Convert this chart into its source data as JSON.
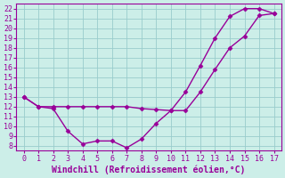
{
  "line1_x": [
    0,
    1,
    2,
    3,
    4,
    5,
    6,
    7,
    8,
    9,
    10,
    11,
    12,
    13,
    14,
    15,
    16,
    17
  ],
  "line1_y": [
    13,
    12,
    11.8,
    9.5,
    8.2,
    8.5,
    8.5,
    7.8,
    8.7,
    10.3,
    11.6,
    13.5,
    16.2,
    19.0,
    21.2,
    22.0,
    22.0,
    21.5
  ],
  "line2_x": [
    0,
    1,
    2,
    3,
    4,
    5,
    6,
    7,
    8,
    9,
    10,
    11,
    12,
    13,
    14,
    15,
    16,
    17
  ],
  "line2_y": [
    13,
    12,
    12,
    12,
    12,
    12,
    12,
    12,
    11.8,
    11.7,
    11.6,
    11.6,
    13.5,
    15.8,
    18.0,
    19.2,
    21.3,
    21.5
  ],
  "line_color": "#990099",
  "bg_color": "#cceee8",
  "grid_color": "#99cccc",
  "xlabel": "Windchill (Refroidissement éolien,°C)",
  "xlim": [
    -0.5,
    17.5
  ],
  "ylim": [
    7.5,
    22.5
  ],
  "xticks": [
    0,
    1,
    2,
    3,
    4,
    5,
    6,
    7,
    8,
    9,
    10,
    11,
    12,
    13,
    14,
    15,
    16,
    17
  ],
  "yticks": [
    8,
    9,
    10,
    11,
    12,
    13,
    14,
    15,
    16,
    17,
    18,
    19,
    20,
    21,
    22
  ],
  "marker": "D",
  "markersize": 2.5,
  "linewidth": 1.0,
  "tick_fontsize": 6,
  "label_fontsize": 7
}
